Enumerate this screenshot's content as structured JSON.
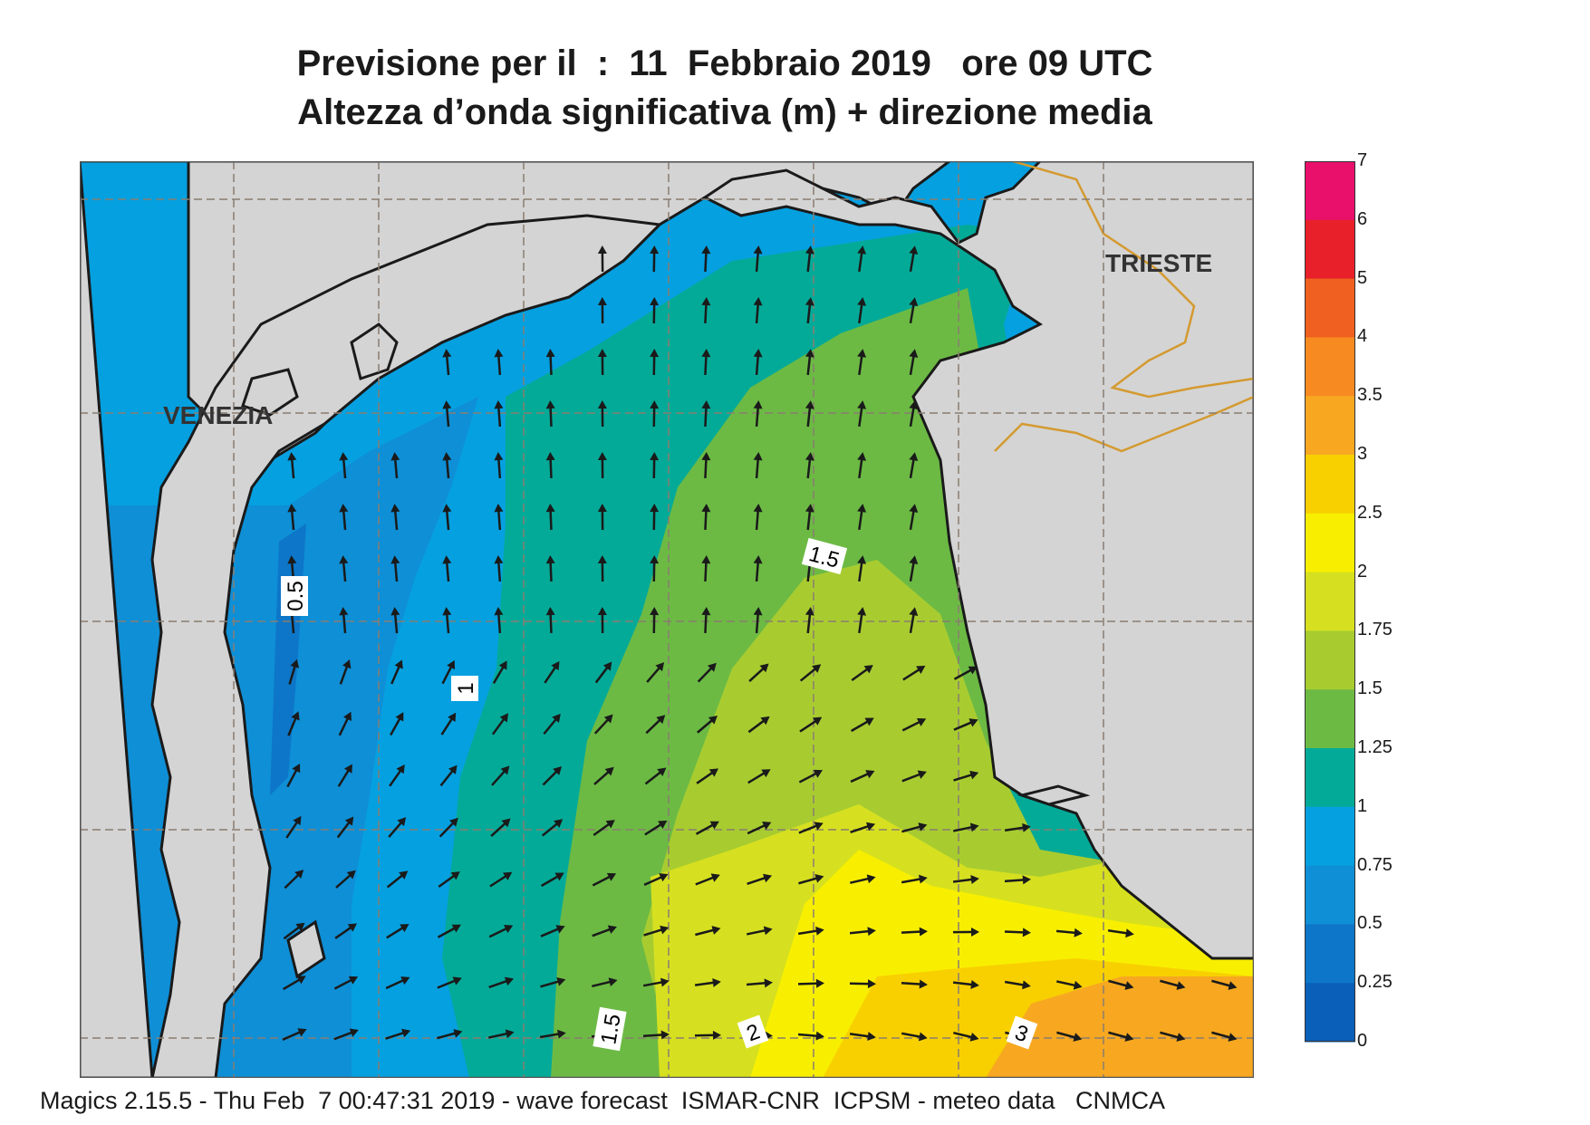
{
  "title": {
    "line1": "Previsione per il  :  11  Febbraio 2019   ore 09 UTC",
    "line2": "Altezza d’onda significativa (m) + direzione media"
  },
  "map": {
    "place_labels": [
      "VENEZIA",
      "TRIESTE"
    ],
    "contour_labels": [
      "0.5",
      "1",
      "1.5",
      "1.5",
      "2",
      "3"
    ],
    "colors": {
      "land": "#d4d4d4",
      "coast": "#1a1a1a",
      "border": "#d49a30",
      "grid": "#8a7d70"
    }
  },
  "colorbar": {
    "labels": [
      "7",
      "6",
      "5",
      "4",
      "3.5",
      "3",
      "2.5",
      "2",
      "1.75",
      "1.5",
      "1.25",
      "1",
      "0.75",
      "0.5",
      "0.25",
      "0"
    ],
    "colors": [
      "#e8106a",
      "#e8202a",
      "#f06020",
      "#f78a20",
      "#f7a820",
      "#f8d000",
      "#f8ef00",
      "#d6e020",
      "#a8cc30",
      "#6cba44",
      "#04aa98",
      "#05a0e0",
      "#0f8fd6",
      "#0d76c8",
      "#0a5fb8"
    ]
  },
  "footer": "Magics 2.15.5 - Thu Feb  7 00:47:31 2019 - wave forecast  ISMAR-CNR  ICPSM - meteo data   CNMCA"
}
